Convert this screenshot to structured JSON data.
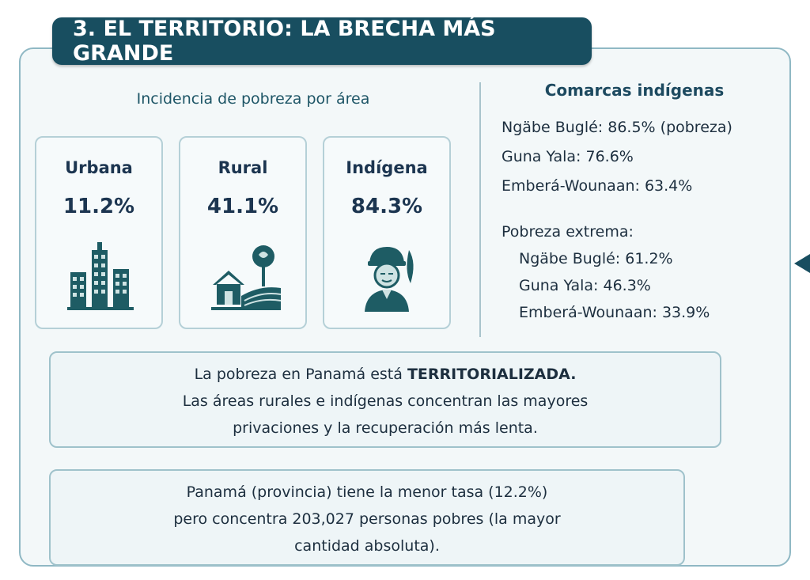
{
  "title": "3. EL TERRITORIO: LA BRECHA MÁS GRANDE",
  "incidence": {
    "heading": "Incidencia de pobreza por área",
    "cards": [
      {
        "label": "Urbana",
        "value": "11.2%",
        "icon": "city-buildings-icon"
      },
      {
        "label": "Rural",
        "value": "41.1%",
        "icon": "rural-house-tree-icon"
      },
      {
        "label": "Indígena",
        "value": "84.3%",
        "icon": "indigenous-person-icon"
      }
    ]
  },
  "comarcas": {
    "title": "Comarcas indígenas",
    "poverty": [
      "Ngäbe Buglé: 86.5% (pobreza)",
      "Guna Yala: 76.6%",
      "Emberá-Wounaan: 63.4%"
    ],
    "extreme_title": "Pobreza extrema:",
    "extreme": [
      "Ngäbe Buglé: 61.2%",
      "Guna Yala: 46.3%",
      "Emberá-Wounaan: 33.9%"
    ]
  },
  "note1": {
    "line1_prefix": "La pobreza en Panamá está ",
    "line1_emphasis": "TERRITORIALIZADA.",
    "line2": "Las áreas rurales e indígenas concentran las mayores",
    "line3": "privaciones y la recuperación más lenta."
  },
  "note2": {
    "line1": "Panamá (provincia) tiene la menor tasa (12.2%)",
    "line2": "pero concentra 203,027 personas pobres (la mayor",
    "line3": "cantidad absoluta)."
  },
  "colors": {
    "banner": "#184e60",
    "panel_border": "#8fb8c4",
    "icon": "#1e5c64",
    "icon_light": "#cfe3e3"
  }
}
